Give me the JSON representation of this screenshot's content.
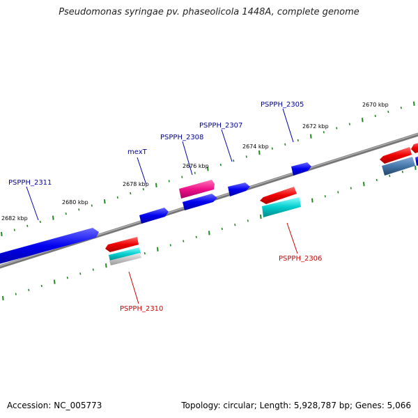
{
  "title": "Pseudomonas syringae pv. phaseolicola 1448A, complete genome",
  "footer": {
    "accession": "Accession: NC_005773",
    "topology": "Topology: circular; Length: 5,928,787 bp; Genes: 5,066"
  },
  "scale_labels": [
    "2670 kbp",
    "2672 kbp",
    "2674 kbp",
    "2676 kbp",
    "2678 kbp",
    "2680 kbp",
    "2682 kbp"
  ],
  "gene_labels": {
    "forward": [
      "PSPPH_2311",
      "mexT",
      "PSPPH_2308",
      "PSPPH_2307",
      "PSPPH_2305"
    ],
    "reverse": [
      "PSPPH_2310",
      "PSPPH_2306"
    ]
  },
  "colors": {
    "forward_gene": "#0000ee",
    "reverse_gene": "#ee0000",
    "cyan_feature": "#00cccc",
    "magenta_feature": "#ee1188",
    "steel_feature": "#4477aa",
    "backbone": "#777777",
    "ticks": "#228822",
    "forward_label": "#000099",
    "reverse_label": "#cc0000"
  }
}
